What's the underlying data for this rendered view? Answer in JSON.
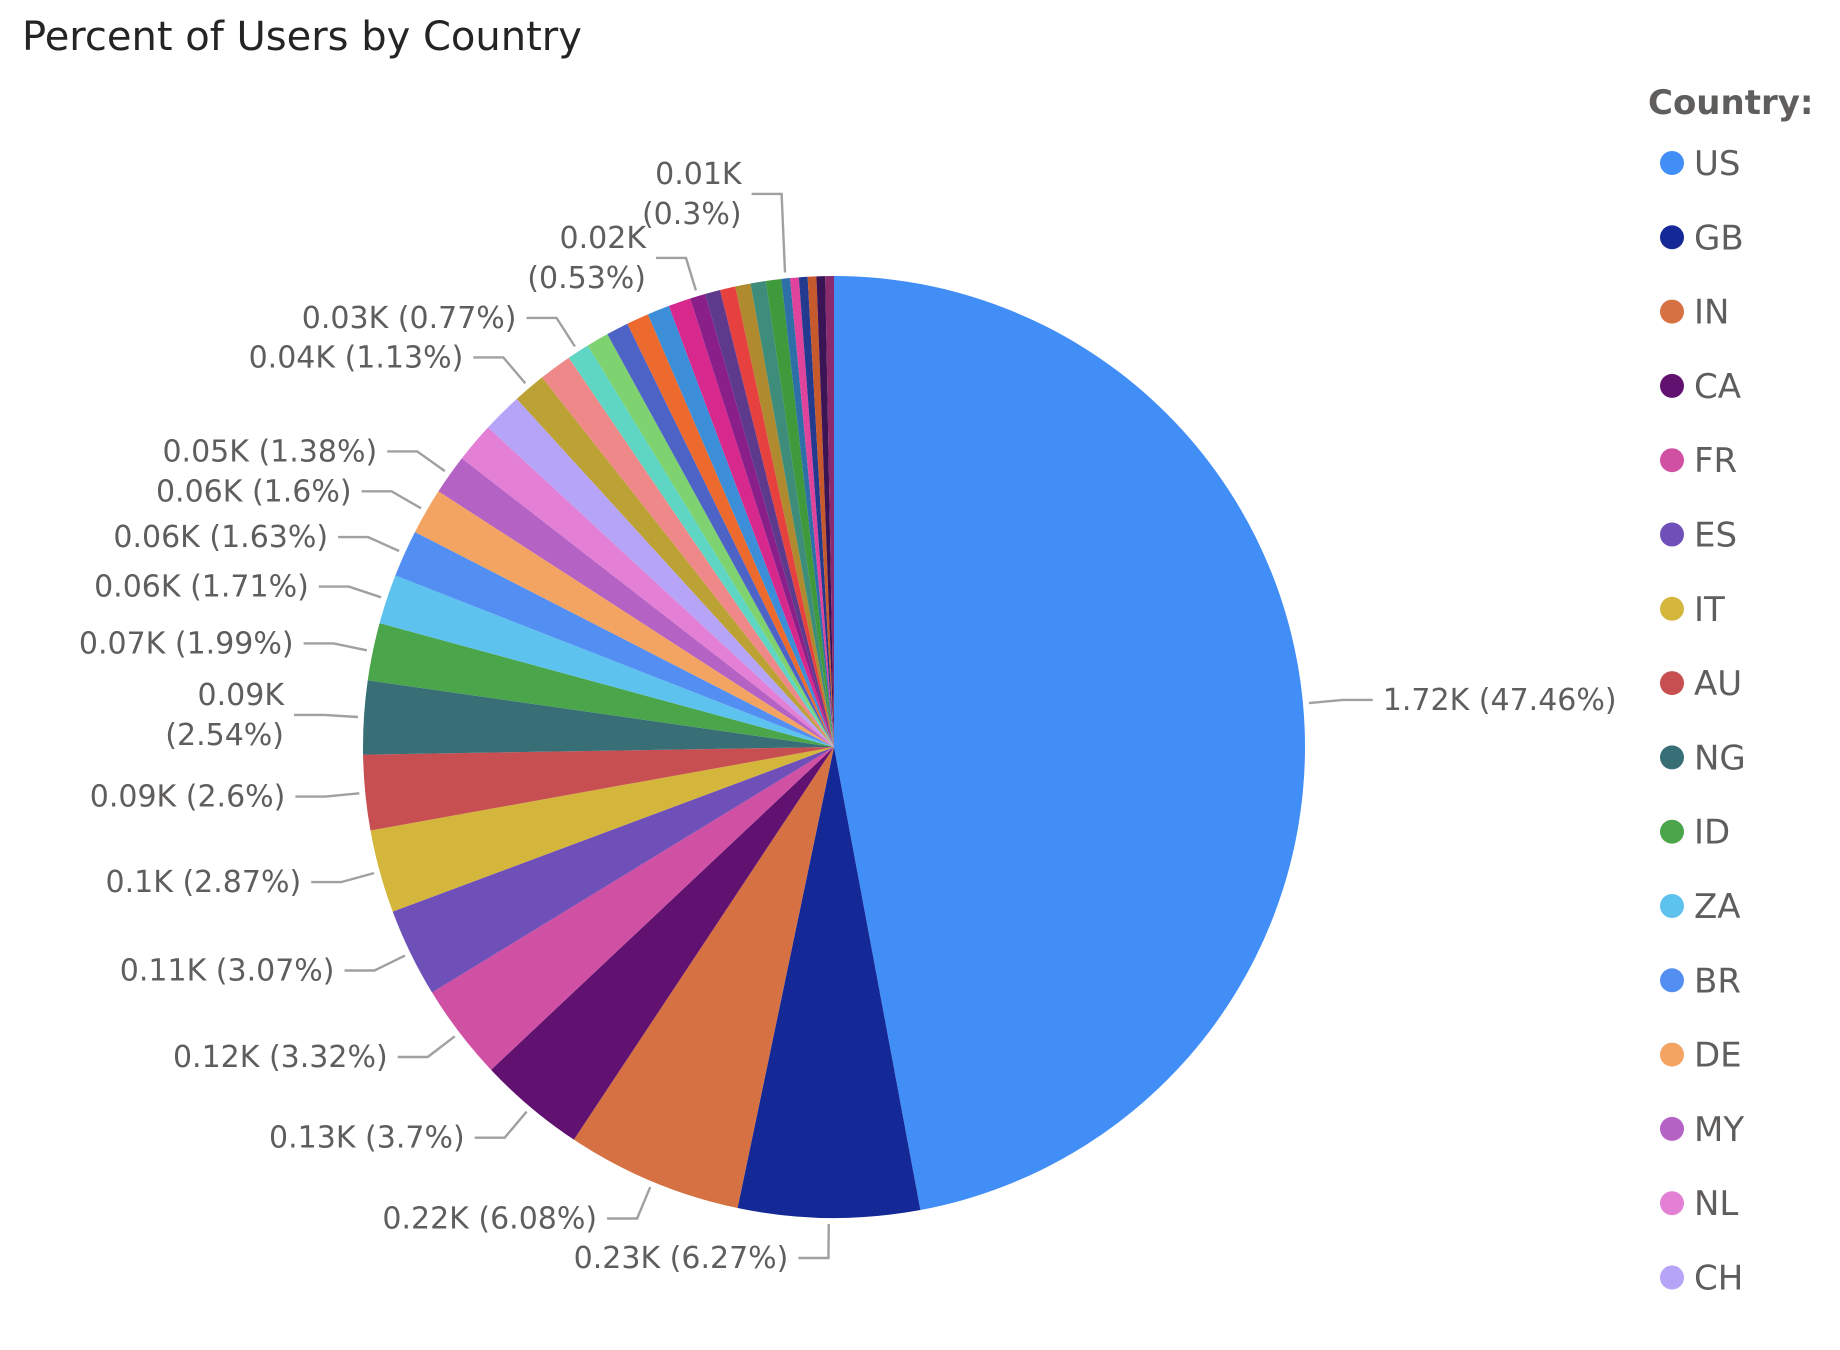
{
  "chart_data": {
    "type": "pie",
    "title": "Percent of Users by Country",
    "legend_title": "Country:",
    "legend_position": "right",
    "legend": [
      {
        "label": "US",
        "color": "#418ef6"
      },
      {
        "label": "GB",
        "color": "#142896"
      },
      {
        "label": "IN",
        "color": "#d67144"
      },
      {
        "label": "CA",
        "color": "#611271"
      },
      {
        "label": "FR",
        "color": "#d050a3"
      },
      {
        "label": "ES",
        "color": "#6f50b8"
      },
      {
        "label": "IT",
        "color": "#d3b63b"
      },
      {
        "label": "AU",
        "color": "#c84f51"
      },
      {
        "label": "NG",
        "color": "#386e76"
      },
      {
        "label": "ID",
        "color": "#4ba54a"
      },
      {
        "label": "ZA",
        "color": "#5ec2ef"
      },
      {
        "label": "BR",
        "color": "#538ff2"
      },
      {
        "label": "DE",
        "color": "#f3a462"
      },
      {
        "label": "MY",
        "color": "#b463c4"
      },
      {
        "label": "NL",
        "color": "#e37fd4"
      },
      {
        "label": "CH",
        "color": "#b5a4f8"
      }
    ],
    "slices": [
      {
        "value": 1.72,
        "percent": 47.46,
        "color": "#418ef6",
        "label": "1.72K (47.46%)"
      },
      {
        "value": 0.23,
        "percent": 6.27,
        "color": "#142896",
        "label": "0.23K (6.27%)"
      },
      {
        "value": 0.22,
        "percent": 6.08,
        "color": "#d67144",
        "label": "0.22K (6.08%)"
      },
      {
        "value": 0.13,
        "percent": 3.7,
        "color": "#611271",
        "label": "0.13K (3.7%)"
      },
      {
        "value": 0.12,
        "percent": 3.32,
        "color": "#d050a3",
        "label": "0.12K (3.32%)"
      },
      {
        "value": 0.11,
        "percent": 3.07,
        "color": "#6f50b8",
        "label": "0.11K (3.07%)"
      },
      {
        "value": 0.1,
        "percent": 2.87,
        "color": "#d3b63b",
        "label": "0.1K (2.87%)"
      },
      {
        "value": 0.09,
        "percent": 2.6,
        "color": "#c84f51",
        "label": "0.09K (2.6%)"
      },
      {
        "value": 0.09,
        "percent": 2.54,
        "color": "#386e76",
        "label": [
          "0.09K",
          "(2.54%)"
        ]
      },
      {
        "value": 0.07,
        "percent": 1.99,
        "color": "#4ba54a",
        "label": "0.07K (1.99%)"
      },
      {
        "value": 0.06,
        "percent": 1.71,
        "color": "#5ec2ef",
        "label": "0.06K (1.71%)"
      },
      {
        "value": 0.06,
        "percent": 1.63,
        "color": "#538ff2",
        "label": "0.06K (1.63%)"
      },
      {
        "value": 0.06,
        "percent": 1.6,
        "color": "#f3a462",
        "label": "0.06K (1.6%)"
      },
      {
        "value": 0.05,
        "percent": 1.38,
        "color": "#b463c4",
        "label": "0.05K (1.38%)"
      },
      {
        "value": 0.05,
        "percent": 1.38,
        "color": "#e37fd4"
      },
      {
        "value": 0.05,
        "percent": 1.38,
        "color": "#b5a4f8"
      },
      {
        "value": 0.04,
        "percent": 1.13,
        "color": "#bca135",
        "label": "0.04K (1.13%)"
      },
      {
        "value": 0.04,
        "percent": 1.13,
        "color": "#ef8888"
      },
      {
        "value": 0.03,
        "percent": 0.77,
        "color": "#5fd6c3",
        "label": "0.03K (0.77%)"
      },
      {
        "value": 0.03,
        "percent": 0.77,
        "color": "#7ed26f"
      },
      {
        "value": 0.03,
        "percent": 0.77,
        "color": "#4e63c6"
      },
      {
        "value": 0.03,
        "percent": 0.77,
        "color": "#ec6a2d"
      },
      {
        "value": 0.03,
        "percent": 0.77,
        "color": "#3c8ed8"
      },
      {
        "value": 0.03,
        "percent": 0.77,
        "color": "#d6288d"
      },
      {
        "value": 0.02,
        "percent": 0.53,
        "color": "#8a1f8a",
        "label": [
          "0.02K",
          "(0.53%)"
        ]
      },
      {
        "value": 0.02,
        "percent": 0.53,
        "color": "#5e3a8c"
      },
      {
        "value": 0.02,
        "percent": 0.53,
        "color": "#e6413f"
      },
      {
        "value": 0.02,
        "percent": 0.53,
        "color": "#b08a2e"
      },
      {
        "value": 0.02,
        "percent": 0.53,
        "color": "#3e8c7a"
      },
      {
        "value": 0.02,
        "percent": 0.53,
        "color": "#3e9a3a"
      },
      {
        "value": 0.01,
        "percent": 0.3,
        "color": "#2f6fa8",
        "label": [
          "0.01K",
          "(0.3%)"
        ]
      },
      {
        "value": 0.01,
        "percent": 0.3,
        "color": "#e0439c"
      },
      {
        "value": 0.01,
        "percent": 0.3,
        "color": "#233a8f"
      },
      {
        "value": 0.01,
        "percent": 0.3,
        "color": "#c75a2c"
      },
      {
        "value": 0.01,
        "percent": 0.3,
        "color": "#3b1456"
      },
      {
        "value": 0.01,
        "percent": 0.3,
        "color": "#8a2b6e"
      }
    ]
  }
}
